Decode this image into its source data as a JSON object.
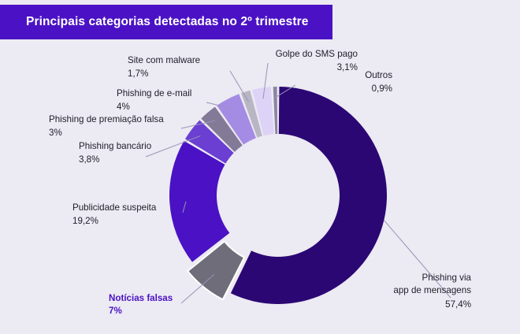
{
  "chart_data": {
    "type": "pie",
    "variant": "donut",
    "title": "Principais categorias detectadas no 2º trimestre",
    "unit": "%",
    "highlighted": "Notícias falsas",
    "slices": [
      {
        "label": "Phishing via app de mensagens",
        "value": 57.4,
        "value_text": "57,4%",
        "color": "#2b0774"
      },
      {
        "label": "Notícias falsas",
        "value": 7,
        "value_text": "7%",
        "color": "#6e6d79",
        "exploded": true
      },
      {
        "label": "Publicidade suspeita",
        "value": 19.2,
        "value_text": "19,2%",
        "color": "#4a12c4"
      },
      {
        "label": "Phishing bancário",
        "value": 3.8,
        "value_text": "3,8%",
        "color": "#6a3fd1"
      },
      {
        "label": "Phishing de premiação falsa",
        "value": 3,
        "value_text": "3%",
        "color": "#837a98"
      },
      {
        "label": "Phishing de e-mail",
        "value": 4,
        "value_text": "4%",
        "color": "#a48be4"
      },
      {
        "label": "Site com malware",
        "value": 1.7,
        "value_text": "1,7%",
        "color": "#b9b6c4"
      },
      {
        "label": "Golpe do SMS pago",
        "value": 3.1,
        "value_text": "3,1%",
        "color": "#ddd3f6"
      },
      {
        "label": "Outros",
        "value": 0.9,
        "value_text": "0,9%",
        "color": "#8a86a2"
      }
    ]
  }
}
